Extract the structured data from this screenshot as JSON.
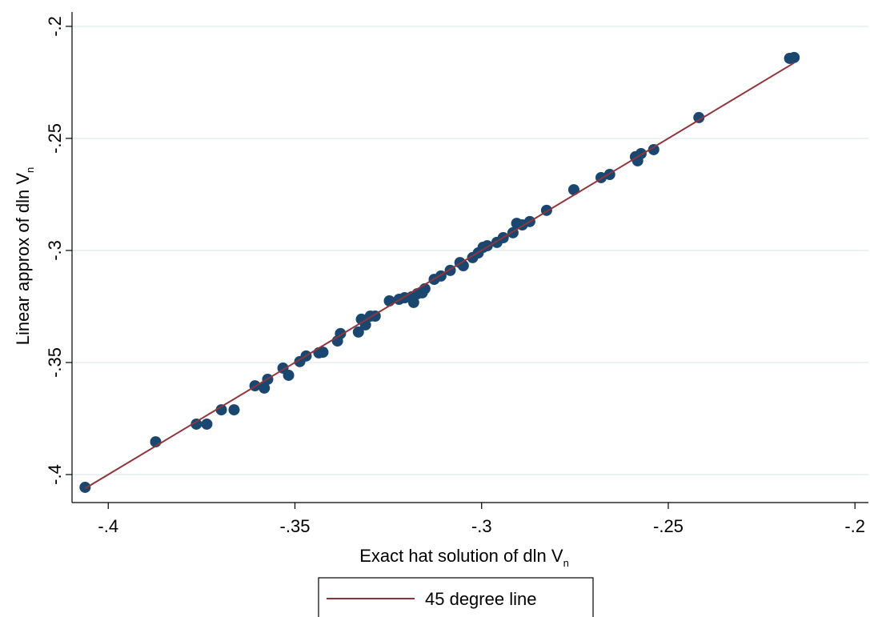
{
  "chart_data": {
    "type": "scatter",
    "x_label": "Exact hat solution of dln V",
    "x_label_subscript": "n",
    "y_label": "Linear approx of dln V",
    "y_label_subscript": "n",
    "xlim": [
      -0.4097,
      -0.1964
    ],
    "ylim": [
      -0.4125,
      -0.1936
    ],
    "xticks": [
      {
        "value": -0.4,
        "label": "-.4"
      },
      {
        "value": -0.35,
        "label": "-.35"
      },
      {
        "value": -0.3,
        "label": "-.3"
      },
      {
        "value": -0.25,
        "label": "-.25"
      },
      {
        "value": -0.2,
        "label": "-.2"
      }
    ],
    "yticks": [
      {
        "value": -0.4,
        "label": "-.4"
      },
      {
        "value": -0.35,
        "label": "-.35"
      },
      {
        "value": -0.3,
        "label": "-.3"
      },
      {
        "value": -0.25,
        "label": "-.25"
      },
      {
        "value": -0.2,
        "label": "-.2"
      }
    ],
    "grid": true,
    "legend": "bottom",
    "series": [
      {
        "type": "scatter",
        "color": "#1a476f",
        "x": [
          -0.4062,
          -0.3873,
          -0.3764,
          -0.3736,
          -0.3697,
          -0.3663,
          -0.3607,
          -0.3582,
          -0.3573,
          -0.3532,
          -0.3517,
          -0.3487,
          -0.347,
          -0.3436,
          -0.3425,
          -0.3386,
          -0.3378,
          -0.333,
          -0.3322,
          -0.3311,
          -0.3298,
          -0.3285,
          -0.3247,
          -0.3221,
          -0.3206,
          -0.3187,
          -0.3182,
          -0.3172,
          -0.3159,
          -0.3152,
          -0.3127,
          -0.3109,
          -0.3084,
          -0.3058,
          -0.3049,
          -0.3024,
          -0.3009,
          -0.2996,
          -0.2985,
          -0.2959,
          -0.2942,
          -0.2916,
          -0.2906,
          -0.2891,
          -0.2871,
          -0.2826,
          -0.2753,
          -0.268,
          -0.2657,
          -0.2588,
          -0.2582,
          -0.2573,
          -0.2539,
          -0.2418,
          -0.2175,
          -0.2163
        ],
        "values": [
          -0.4057,
          -0.3854,
          -0.3775,
          -0.3775,
          -0.3711,
          -0.3711,
          -0.3604,
          -0.3614,
          -0.3575,
          -0.3525,
          -0.3557,
          -0.3496,
          -0.3471,
          -0.3457,
          -0.3454,
          -0.3404,
          -0.3371,
          -0.3364,
          -0.3307,
          -0.3332,
          -0.3293,
          -0.3293,
          -0.3225,
          -0.3218,
          -0.3211,
          -0.3207,
          -0.3232,
          -0.3193,
          -0.3189,
          -0.3171,
          -0.3129,
          -0.3114,
          -0.3089,
          -0.3054,
          -0.3068,
          -0.3032,
          -0.3011,
          -0.2986,
          -0.2979,
          -0.2964,
          -0.2943,
          -0.2921,
          -0.2879,
          -0.2886,
          -0.2871,
          -0.2821,
          -0.2729,
          -0.2675,
          -0.2661,
          -0.2582,
          -0.26,
          -0.2568,
          -0.255,
          -0.2407,
          -0.2143,
          -0.2139
        ]
      },
      {
        "type": "line",
        "name": "45 degree line",
        "color": "#90353b",
        "x": [
          -0.4062,
          -0.2163
        ],
        "values": [
          -0.4062,
          -0.2163
        ]
      }
    ]
  }
}
